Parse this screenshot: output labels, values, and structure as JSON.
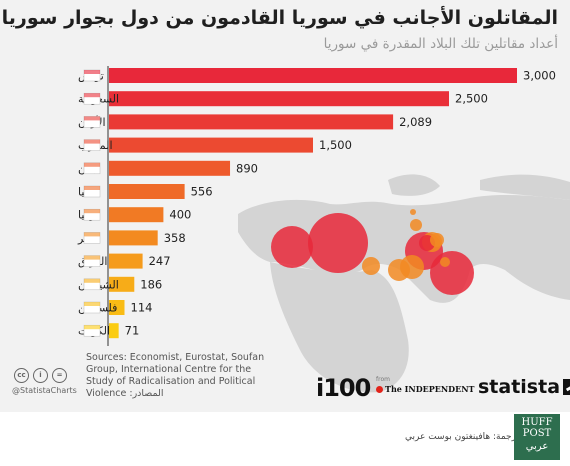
{
  "header": {
    "title": "المقاتلون الأجانب في سوريا القادمون من دول بجوار سوريا",
    "subtitle": "أعداد مقاتلين تلك البلاد المقدرة في سوريا"
  },
  "chart_data": {
    "type": "bar",
    "orientation": "horizontal",
    "categories": [
      "تونس",
      "السعودية",
      "الأردن",
      "المغرب",
      "لبنان",
      "ليبيا",
      "تركيا",
      "مصر",
      "العراق",
      "الشيشان",
      "فلسطين",
      "الكويت"
    ],
    "values": [
      3000,
      2500,
      2089,
      1500,
      890,
      556,
      400,
      358,
      247,
      186,
      114,
      71
    ],
    "value_labels": [
      "3,000",
      "2,500",
      "2,089",
      "1,500",
      "890",
      "556",
      "400",
      "358",
      "247",
      "186",
      "114",
      "71"
    ],
    "colors": [
      "#e8283a",
      "#e92f38",
      "#ea3a35",
      "#ec4a31",
      "#ee5a2c",
      "#ef6a28",
      "#f17a24",
      "#f38a20",
      "#f59b1c",
      "#f7ac18",
      "#f9bc15",
      "#fbcc12"
    ],
    "xlim": [
      0,
      3000
    ],
    "grid": false,
    "legend": "none"
  },
  "map": {
    "land_color": "#d4d4d4",
    "bubble_color": "#e8283a",
    "bubble_alt_color": "#f28a22"
  },
  "source": {
    "label_ar": ":المصادر",
    "text": "Sources: Economist, Eurostat, Soufan Group, International Centre for the Study of Radicalisation and Political Violence"
  },
  "footer": {
    "handle": "@StatistaCharts",
    "i100": "i100",
    "from": "from",
    "independent": "The INDEPENDENT",
    "statista": "statista"
  },
  "translation": "ترجمة: هافينغتون بوست عربي",
  "huffpost": {
    "line1": "HUFF",
    "line2": "POST",
    "ar": "عربي"
  }
}
